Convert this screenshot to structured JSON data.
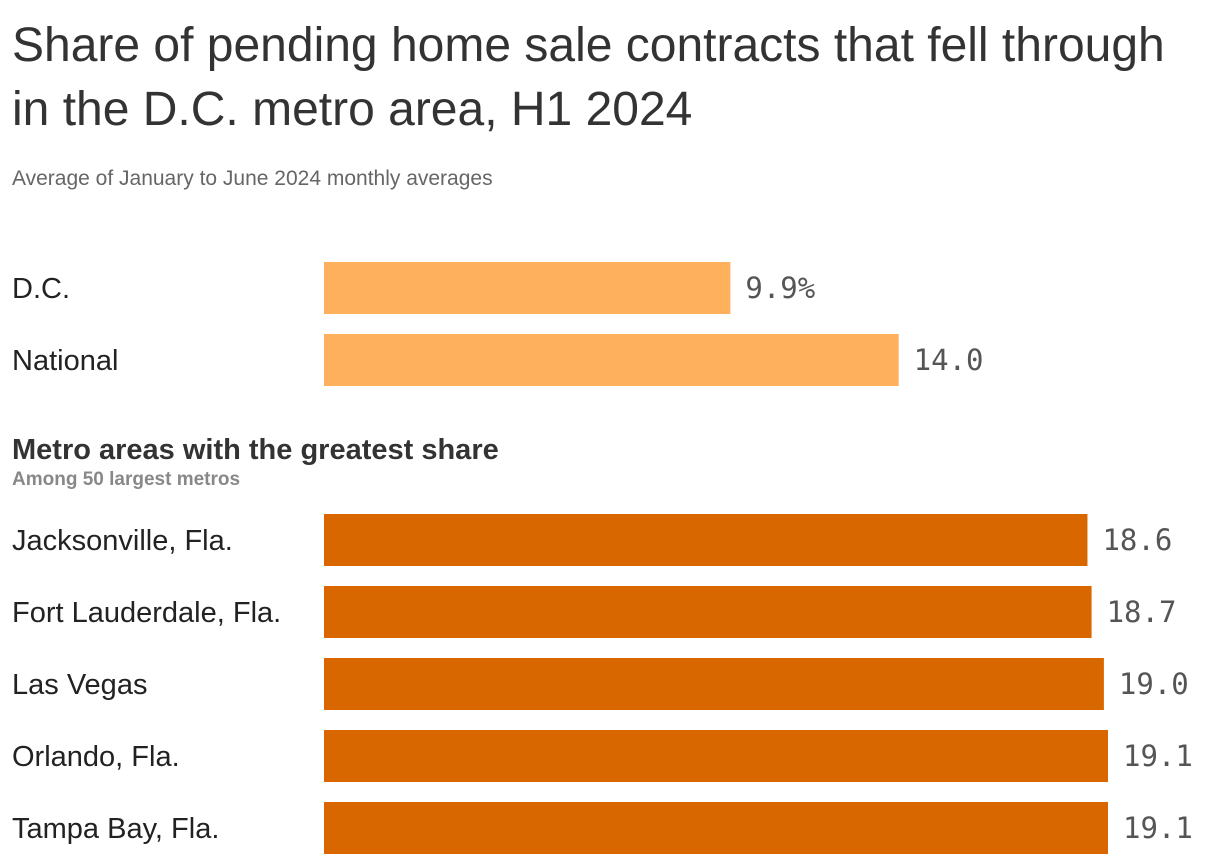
{
  "chart_data": {
    "type": "bar",
    "orientation": "horizontal",
    "title": "Share of pending home sale contracts that fell through in the D.C. metro area, H1 2024",
    "subtitle": "Average of January to June 2024 monthly averages",
    "xlim": [
      0,
      19.1
    ],
    "groups": [
      {
        "title": "",
        "subtitle": "",
        "color": "#ffb05c",
        "categories": [
          "D.C.",
          "National"
        ],
        "values": [
          9.9,
          14.0
        ],
        "value_labels": [
          "9.9%",
          "14.0"
        ]
      },
      {
        "title": "Metro areas with the greatest share",
        "subtitle": "Among 50 largest metros",
        "color": "#d96700",
        "categories": [
          "Jacksonville, Fla.",
          "Fort Lauderdale, Fla.",
          "Las Vegas",
          "Orlando, Fla.",
          "Tampa Bay, Fla."
        ],
        "values": [
          18.6,
          18.7,
          19.0,
          19.1,
          19.1
        ],
        "value_labels": [
          "18.6",
          "18.7",
          "19.0",
          "19.1",
          "19.1"
        ]
      }
    ]
  }
}
